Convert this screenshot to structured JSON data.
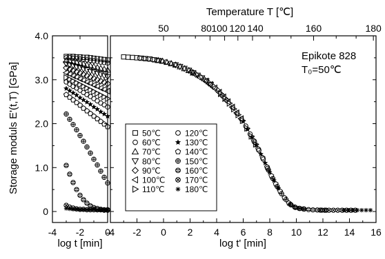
{
  "chart_data": [
    {
      "type": "scatter",
      "xlabel": "log t [min]",
      "ylabel": "Storage moduls E'(t,T) [GPa]",
      "xlim": [
        -4,
        0
      ],
      "ylim": [
        -0.25,
        4.0
      ],
      "xticks": [
        -4,
        -2,
        0
      ],
      "xtick_labels": [
        "-4",
        "-2",
        "0"
      ],
      "yticks": [
        0,
        1,
        2,
        3,
        4
      ],
      "ytick_labels": [
        "0",
        "1.0",
        "2.0",
        "3.0",
        "4.0"
      ],
      "x": [
        -3.0,
        -2.75,
        -2.5,
        -2.25,
        -2.0,
        -1.75,
        -1.5,
        -1.25,
        -1.0,
        -0.75,
        -0.5,
        -0.25,
        0.0
      ],
      "series": [
        {
          "name": "50℃",
          "marker": "square",
          "values": [
            3.53,
            3.53,
            3.53,
            3.52,
            3.52,
            3.51,
            3.51,
            3.5,
            3.49,
            3.48,
            3.47,
            3.46,
            3.45
          ]
        },
        {
          "name": "60℃",
          "marker": "circle",
          "values": [
            3.5,
            3.5,
            3.49,
            3.48,
            3.47,
            3.46,
            3.45,
            3.44,
            3.43,
            3.42,
            3.4,
            3.39,
            3.38
          ]
        },
        {
          "name": "70℃",
          "marker": "triangle-up",
          "values": [
            3.44,
            3.43,
            3.41,
            3.4,
            3.38,
            3.36,
            3.34,
            3.32,
            3.3,
            3.28,
            3.26,
            3.24,
            3.22
          ]
        },
        {
          "name": "80℃",
          "marker": "triangle-down",
          "values": [
            3.36,
            3.34,
            3.32,
            3.29,
            3.27,
            3.24,
            3.22,
            3.19,
            3.17,
            3.14,
            3.12,
            3.09,
            3.07
          ]
        },
        {
          "name": "90℃",
          "marker": "diamond",
          "values": [
            3.27,
            3.24,
            3.21,
            3.18,
            3.15,
            3.12,
            3.09,
            3.06,
            3.03,
            3.0,
            2.97,
            2.94,
            2.91
          ]
        },
        {
          "name": "100℃",
          "marker": "triangle-left",
          "values": [
            3.16,
            3.13,
            3.09,
            3.06,
            3.02,
            2.99,
            2.95,
            2.92,
            2.88,
            2.85,
            2.81,
            2.78,
            2.74
          ]
        },
        {
          "name": "110℃",
          "marker": "triangle-right",
          "values": [
            3.05,
            3.01,
            2.97,
            2.93,
            2.89,
            2.85,
            2.81,
            2.77,
            2.73,
            2.69,
            2.65,
            2.61,
            2.57
          ]
        },
        {
          "name": "120℃",
          "marker": "circle",
          "values": [
            2.95,
            2.9,
            2.85,
            2.81,
            2.76,
            2.71,
            2.66,
            2.62,
            2.57,
            2.52,
            2.47,
            2.43,
            2.38
          ]
        },
        {
          "name": "130℃",
          "marker": "star",
          "values": [
            2.8,
            2.75,
            2.7,
            2.65,
            2.59,
            2.54,
            2.49,
            2.44,
            2.38,
            2.33,
            2.27,
            2.22,
            2.17
          ]
        },
        {
          "name": "140℃",
          "marker": "pentagon",
          "values": [
            2.66,
            2.6,
            2.54,
            2.48,
            2.42,
            2.35,
            2.29,
            2.23,
            2.17,
            2.11,
            2.05,
            1.99,
            1.93
          ]
        },
        {
          "name": "150℃",
          "marker": "circle-plus",
          "values": [
            2.22,
            2.1,
            1.98,
            1.86,
            1.73,
            1.6,
            1.47,
            1.33,
            1.19,
            1.06,
            0.92,
            0.78,
            0.65
          ]
        },
        {
          "name": "160℃",
          "marker": "circle-bar",
          "values": [
            1.05,
            0.85,
            0.66,
            0.5,
            0.37,
            0.27,
            0.19,
            0.13,
            0.09,
            0.07,
            0.05,
            0.04,
            0.04
          ]
        },
        {
          "name": "170℃",
          "marker": "circle-x",
          "values": [
            0.14,
            0.1,
            0.08,
            0.06,
            0.05,
            0.05,
            0.04,
            0.04,
            0.04,
            0.04,
            0.04,
            0.03,
            0.03
          ]
        },
        {
          "name": "180℃",
          "marker": "asterisk",
          "values": [
            0.07,
            0.06,
            0.05,
            0.05,
            0.04,
            0.04,
            0.04,
            0.04,
            0.04,
            0.03,
            0.03,
            0.03,
            0.03
          ]
        }
      ]
    },
    {
      "type": "scatter",
      "xlabel": "log t' [min]",
      "x2label": "Temperature T [℃]",
      "xlim": [
        -4,
        16
      ],
      "ylim": [
        -0.25,
        4.0
      ],
      "xticks": [
        -4,
        -2,
        0,
        2,
        4,
        6,
        8,
        10,
        12,
        14,
        16
      ],
      "xtick_labels": [
        "-4",
        "-2",
        "0",
        "2",
        "4",
        "6",
        "8",
        "10",
        "12",
        "14",
        "16"
      ],
      "top_ticks": [
        {
          "x": 0.0,
          "label": "50"
        },
        {
          "x": 3.5,
          "label": "80"
        },
        {
          "x": 4.6,
          "label": "100"
        },
        {
          "x": 5.6,
          "label": "120"
        },
        {
          "x": 6.7,
          "label": "140"
        },
        {
          "x": 11.3,
          "label": "160"
        },
        {
          "x": 15.8,
          "label": "180"
        }
      ],
      "annotation": [
        "Epikote 828",
        "T₀=50℃"
      ],
      "master_curve": {
        "description_points_x": [
          -3.0,
          -2.0,
          -1.0,
          0.0,
          1.0,
          2.0,
          3.0,
          4.0,
          5.0,
          6.0,
          7.0,
          7.5,
          8.0,
          8.5,
          9.0,
          9.5,
          10.0,
          11.0,
          12.0,
          13.0,
          14.0,
          15.0,
          16.0
        ],
        "description_points_y": [
          3.52,
          3.5,
          3.47,
          3.42,
          3.33,
          3.2,
          3.02,
          2.78,
          2.45,
          2.05,
          1.5,
          1.2,
          0.88,
          0.6,
          0.35,
          0.17,
          0.08,
          0.04,
          0.03,
          0.03,
          0.03,
          0.03,
          0.03
        ]
      },
      "legend_position": "lower-left"
    }
  ]
}
